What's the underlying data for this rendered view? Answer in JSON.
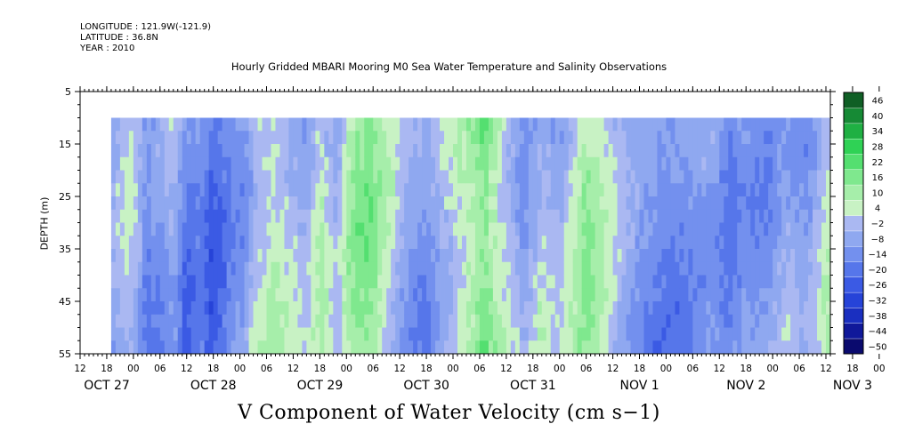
{
  "header": {
    "longitude": "LONGITUDE : 121.9W(-121.9)",
    "latitude": "LATITUDE : 36.8N",
    "year": "YEAR : 2010",
    "title": "Hourly Gridded MBARI Mooring M0 Sea Water Temperature and Salinity Observations"
  },
  "chart_data": {
    "type": "heatmap",
    "title": "Hourly Gridded MBARI Mooring M0 Sea Water Temperature and Salinity Observations",
    "variable_label": "V Component of Water Velocity (cm s−1)",
    "ylabel": "DEPTH (m)",
    "ylim": [
      5,
      55
    ],
    "y_inverted": true,
    "y_ticks": [
      5,
      15,
      25,
      35,
      45,
      55
    ],
    "data_depth_range": [
      10,
      55
    ],
    "x_range_hours": [
      "2010-10-27T12:00",
      "2010-11-03T13:00"
    ],
    "data_start": "2010-10-27T19:00",
    "x_hour_ticks": [
      "12",
      "18",
      "00",
      "06",
      "12",
      "18",
      "00",
      "06",
      "12",
      "18",
      "00",
      "06",
      "12",
      "18",
      "00",
      "06",
      "12",
      "18",
      "00",
      "06",
      "12",
      "18",
      "00",
      "06",
      "12",
      "18",
      "00",
      "06",
      "12",
      "18",
      "00",
      "06",
      "12"
    ],
    "x_day_labels": [
      "OCT 27",
      "OCT 28",
      "OCT 29",
      "OCT 30",
      "OCT 31",
      "NOV  1",
      "NOV  2",
      "NOV  3"
    ],
    "colorbar": {
      "levels": [
        -50,
        -44,
        -38,
        -32,
        -26,
        -20,
        -14,
        -8,
        -2,
        4,
        10,
        16,
        22,
        28,
        34,
        40,
        46
      ],
      "labels": [
        "46",
        "40",
        "34",
        "28",
        "22",
        "16",
        "10",
        "4",
        "−2",
        "−8",
        "−14",
        "−20",
        "−26",
        "−32",
        "−38",
        "−44",
        "−50"
      ],
      "colors": [
        "#0a0a6e",
        "#10189a",
        "#1a2fc0",
        "#2643d8",
        "#3b5ae4",
        "#5676ea",
        "#7390ee",
        "#8fa8f0",
        "#aab8f2",
        "#c8f2c4",
        "#a6eeaa",
        "#7fe88e",
        "#54df70",
        "#2fd255",
        "#1fb043",
        "#168a35",
        "#0f5f25"
      ]
    },
    "time_profile_hourly_v": [
      {
        "t": "2010-10-27T19:00",
        "v": -8
      },
      {
        "t": "2010-10-27T23:00",
        "v": 2
      },
      {
        "t": "2010-10-28T01:00",
        "v": -4
      },
      {
        "t": "2010-10-28T03:00",
        "v": -14
      },
      {
        "t": "2010-10-28T06:00",
        "v": -10
      },
      {
        "t": "2010-10-28T09:00",
        "v": -2
      },
      {
        "t": "2010-10-28T12:00",
        "v": -16
      },
      {
        "t": "2010-10-28T15:00",
        "v": -10
      },
      {
        "t": "2010-10-28T18:00",
        "v": -20
      },
      {
        "t": "2010-10-28T22:00",
        "v": -8
      },
      {
        "t": "2010-10-29T01:00",
        "v": -6
      },
      {
        "t": "2010-10-29T04:00",
        "v": 6
      },
      {
        "t": "2010-10-29T08:00",
        "v": 10
      },
      {
        "t": "2010-10-29T12:00",
        "v": 2
      },
      {
        "t": "2010-10-29T15:00",
        "v": -4
      },
      {
        "t": "2010-10-29T18:00",
        "v": 8
      },
      {
        "t": "2010-10-29T22:00",
        "v": -6
      },
      {
        "t": "2010-10-30T01:00",
        "v": 12
      },
      {
        "t": "2010-10-30T05:00",
        "v": 16
      },
      {
        "t": "2010-10-30T09:00",
        "v": 6
      },
      {
        "t": "2010-10-30T13:00",
        "v": -6
      },
      {
        "t": "2010-10-30T18:00",
        "v": -10
      },
      {
        "t": "2010-10-30T22:00",
        "v": 2
      },
      {
        "t": "2010-10-31T02:00",
        "v": 10
      },
      {
        "t": "2010-10-31T07:00",
        "v": 22
      },
      {
        "t": "2010-10-31T12:00",
        "v": 6
      },
      {
        "t": "2010-10-31T16:00",
        "v": -6
      },
      {
        "t": "2010-10-31T20:00",
        "v": 4
      },
      {
        "t": "2010-11-01T00:00",
        "v": -4
      },
      {
        "t": "2010-11-01T06:00",
        "v": 14
      },
      {
        "t": "2010-11-01T11:00",
        "v": 2
      },
      {
        "t": "2010-11-01T16:00",
        "v": -8
      },
      {
        "t": "2010-11-01T20:00",
        "v": -12
      },
      {
        "t": "2010-11-02T00:00",
        "v": -14
      },
      {
        "t": "2010-11-02T05:00",
        "v": -10
      },
      {
        "t": "2010-11-02T10:00",
        "v": -4
      },
      {
        "t": "2010-11-02T14:00",
        "v": -12
      },
      {
        "t": "2010-11-02T18:00",
        "v": -6
      },
      {
        "t": "2010-11-02T22:00",
        "v": -10
      },
      {
        "t": "2010-11-03T03:00",
        "v": -2
      },
      {
        "t": "2010-11-03T08:00",
        "v": -8
      },
      {
        "t": "2010-11-03T12:00",
        "v": 4
      }
    ]
  }
}
